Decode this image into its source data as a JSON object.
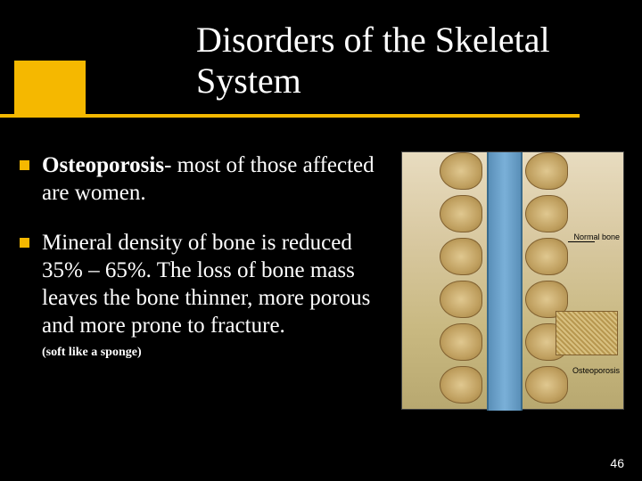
{
  "title": "Disorders of the Skeletal System",
  "bullets": [
    {
      "bold": "Osteoporosis",
      "rest": "- most of those affected are women."
    },
    {
      "bold": "",
      "rest": "Mineral density of bone is reduced 35% – 65%. The loss of bone mass leaves the bone thinner, more porous and more prone to fracture."
    }
  ],
  "note": "(soft like a sponge)",
  "page_number": "46",
  "image_labels": {
    "normal": "Normal bone",
    "osteo": "Osteoporosis"
  },
  "colors": {
    "accent": "#f5b800",
    "background": "#000000",
    "text": "#ffffff"
  }
}
